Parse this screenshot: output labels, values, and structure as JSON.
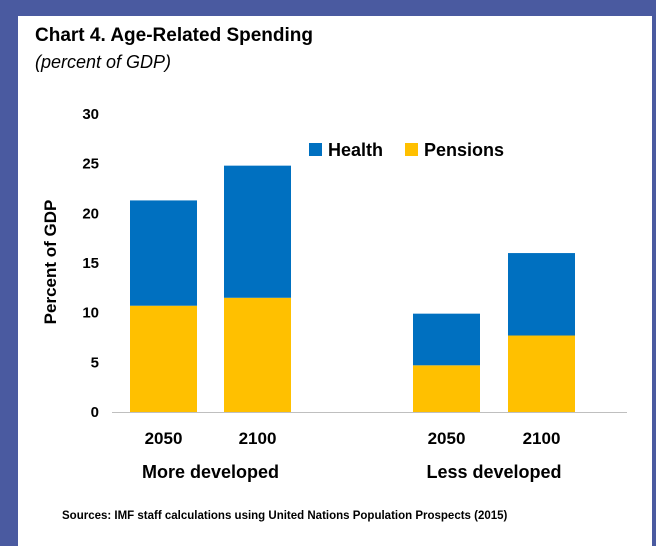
{
  "chart_data": {
    "type": "bar",
    "stacked": true,
    "title": "Chart 4. Age-Related Spending",
    "subtitle": "(percent of GDP)",
    "ylabel": "Percent of GDP",
    "xlabel": "",
    "ylim": [
      0,
      30
    ],
    "yticks": [
      "0",
      "5",
      "10",
      "15",
      "20",
      "25",
      "30"
    ],
    "groups": [
      {
        "name": "More developed",
        "categories": [
          "2050",
          "2100"
        ]
      },
      {
        "name": "Less developed",
        "categories": [
          "2050",
          "2100"
        ]
      }
    ],
    "categories": [
      "2050",
      "2100",
      "2050",
      "2100"
    ],
    "series": [
      {
        "name": "Pensions",
        "color": "#ffc000",
        "values": [
          10.7,
          11.5,
          4.7,
          7.7
        ]
      },
      {
        "name": "Health",
        "color": "#0070c0",
        "values": [
          10.6,
          13.3,
          5.2,
          8.3
        ]
      }
    ],
    "legend_order": [
      "Health",
      "Pensions"
    ],
    "legend_position": "top-right",
    "grid": false,
    "source": "Sources: IMF staff calculations using United Nations Population Prospects (2015)"
  }
}
